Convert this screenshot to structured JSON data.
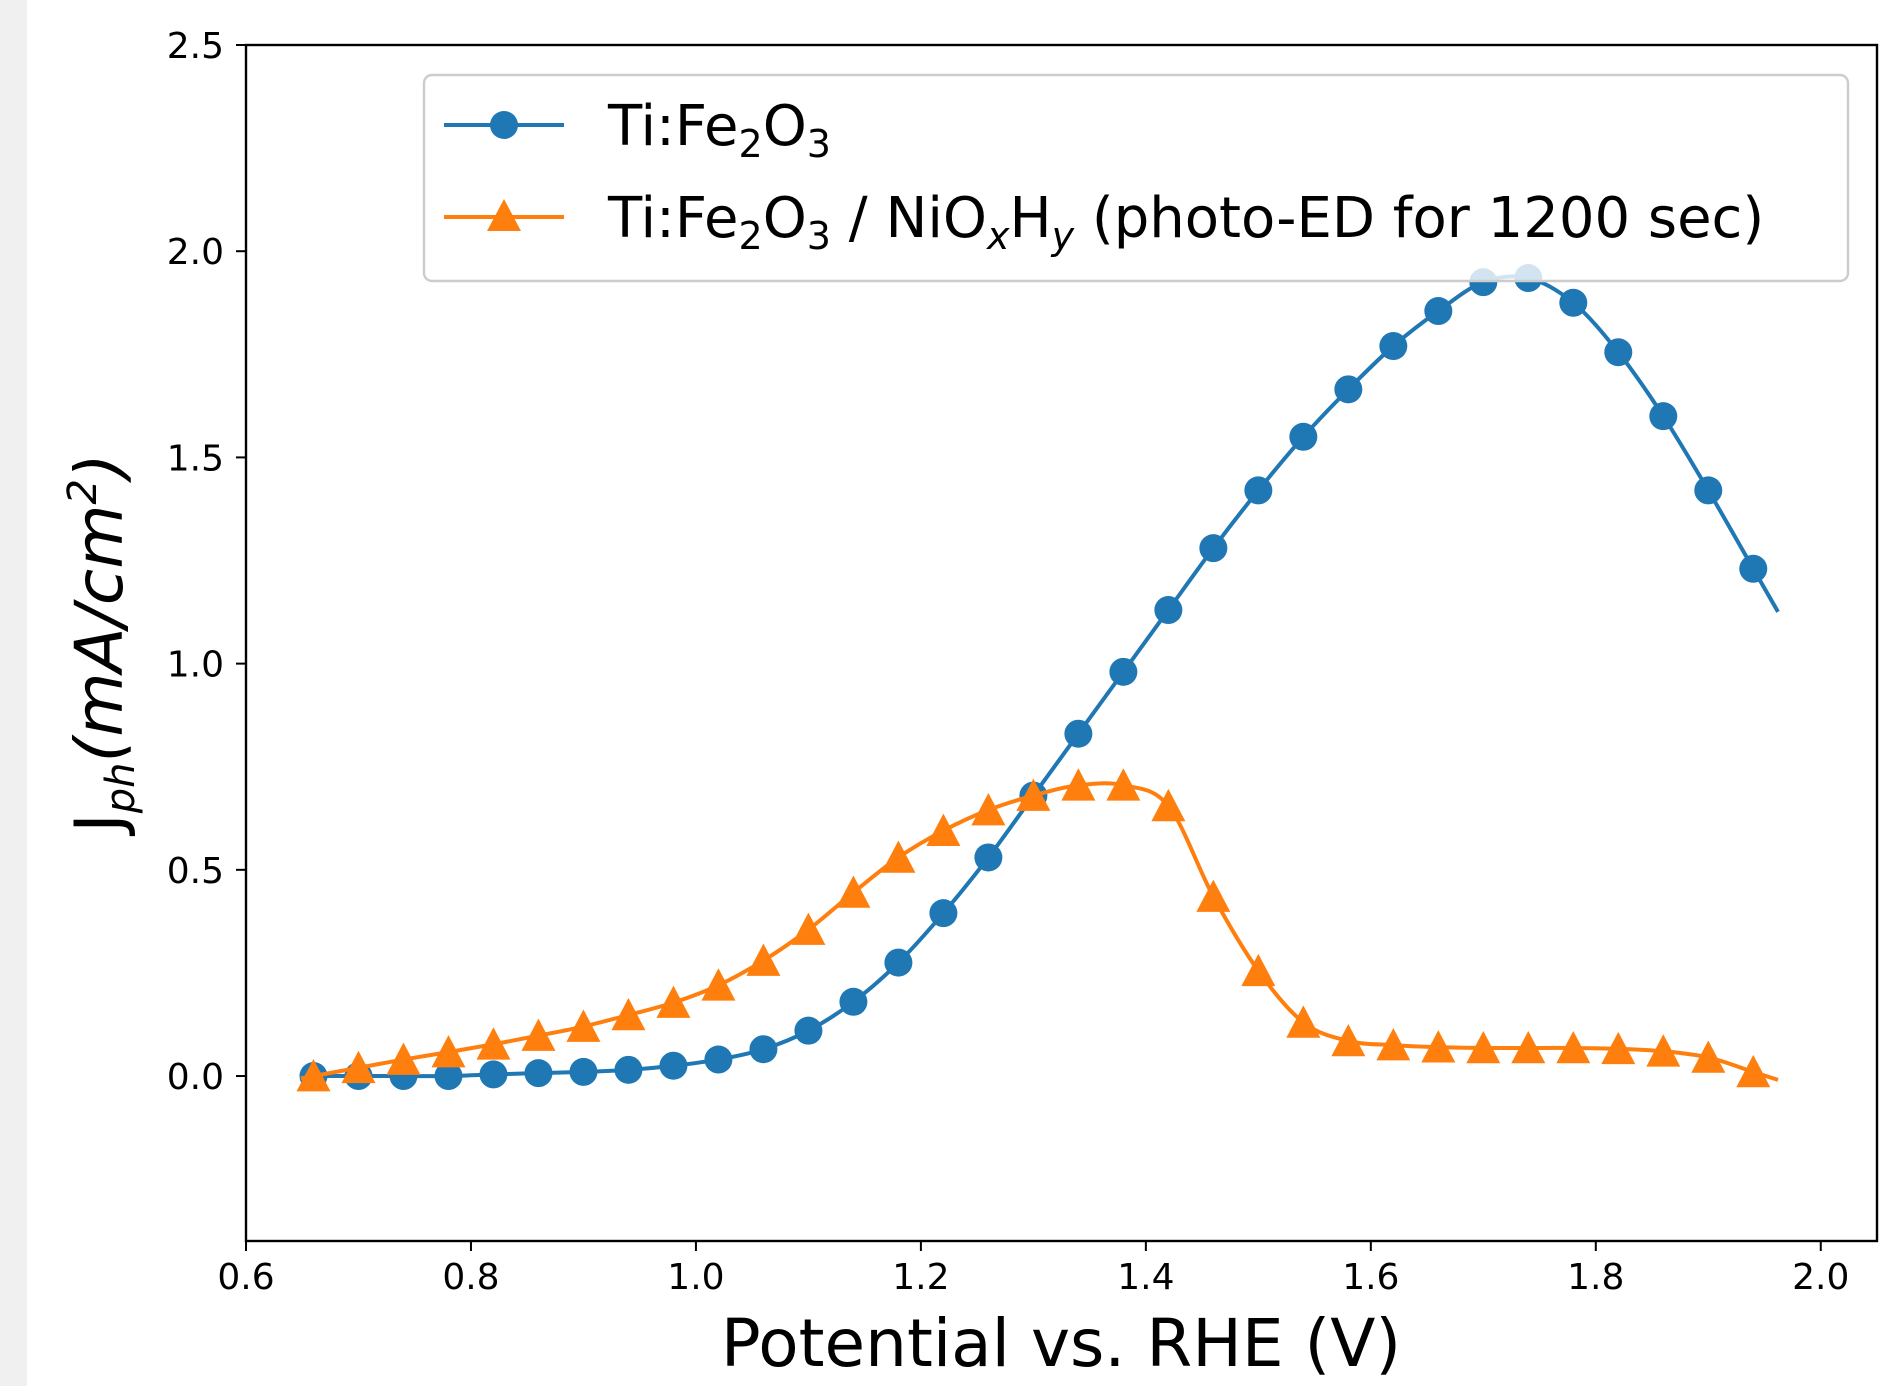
{
  "chart_data": {
    "type": "line",
    "xlabel": "Potential vs. RHE (V)",
    "ylabel": "J ph(mA/cm2)",
    "xlim": [
      0.6,
      2.05
    ],
    "ylim": [
      -0.4,
      2.5
    ],
    "xticks": [
      "0.6",
      "0.8",
      "1.0",
      "1.2",
      "1.4",
      "1.6",
      "1.8",
      "2.0"
    ],
    "yticks": [
      "0.0",
      "0.5",
      "1.0",
      "1.5",
      "2.0",
      "2.5"
    ],
    "grid": false,
    "legend_position": "top-right",
    "series": [
      {
        "name": "Ti:Fe2O3",
        "color": "#1f77b4",
        "marker": "circle",
        "x": [
          0.66,
          0.7,
          0.74,
          0.78,
          0.82,
          0.86,
          0.9,
          0.94,
          0.98,
          1.02,
          1.06,
          1.1,
          1.14,
          1.18,
          1.22,
          1.26,
          1.3,
          1.34,
          1.38,
          1.42,
          1.46,
          1.5,
          1.54,
          1.58,
          1.62,
          1.66,
          1.7,
          1.74,
          1.78,
          1.82,
          1.86,
          1.9,
          1.94
        ],
        "y": [
          0.0,
          0.0,
          0.0,
          0.0,
          0.004,
          0.007,
          0.01,
          0.015,
          0.025,
          0.04,
          0.065,
          0.11,
          0.18,
          0.275,
          0.395,
          0.53,
          0.68,
          0.83,
          0.98,
          1.13,
          1.28,
          1.42,
          1.55,
          1.665,
          1.77,
          1.855,
          1.925,
          1.935,
          1.875,
          1.755,
          1.6,
          1.42,
          1.23
        ]
      },
      {
        "name": "Ti:Fe2O3 / NiOxHy (photo-ED for 1200 sec)",
        "color": "#ff7f0e",
        "marker": "triangle",
        "x": [
          0.66,
          0.7,
          0.74,
          0.78,
          0.82,
          0.86,
          0.9,
          0.94,
          0.98,
          1.02,
          1.06,
          1.1,
          1.14,
          1.18,
          1.22,
          1.26,
          1.3,
          1.34,
          1.38,
          1.42,
          1.46,
          1.5,
          1.54,
          1.58,
          1.62,
          1.66,
          1.7,
          1.74,
          1.78,
          1.82,
          1.86,
          1.9,
          1.94
        ],
        "y": [
          0.0,
          0.02,
          0.04,
          0.058,
          0.077,
          0.098,
          0.12,
          0.148,
          0.178,
          0.22,
          0.28,
          0.355,
          0.445,
          0.53,
          0.595,
          0.645,
          0.68,
          0.705,
          0.705,
          0.655,
          0.435,
          0.255,
          0.13,
          0.085,
          0.075,
          0.07,
          0.068,
          0.068,
          0.068,
          0.066,
          0.06,
          0.045,
          0.01
        ]
      }
    ]
  }
}
